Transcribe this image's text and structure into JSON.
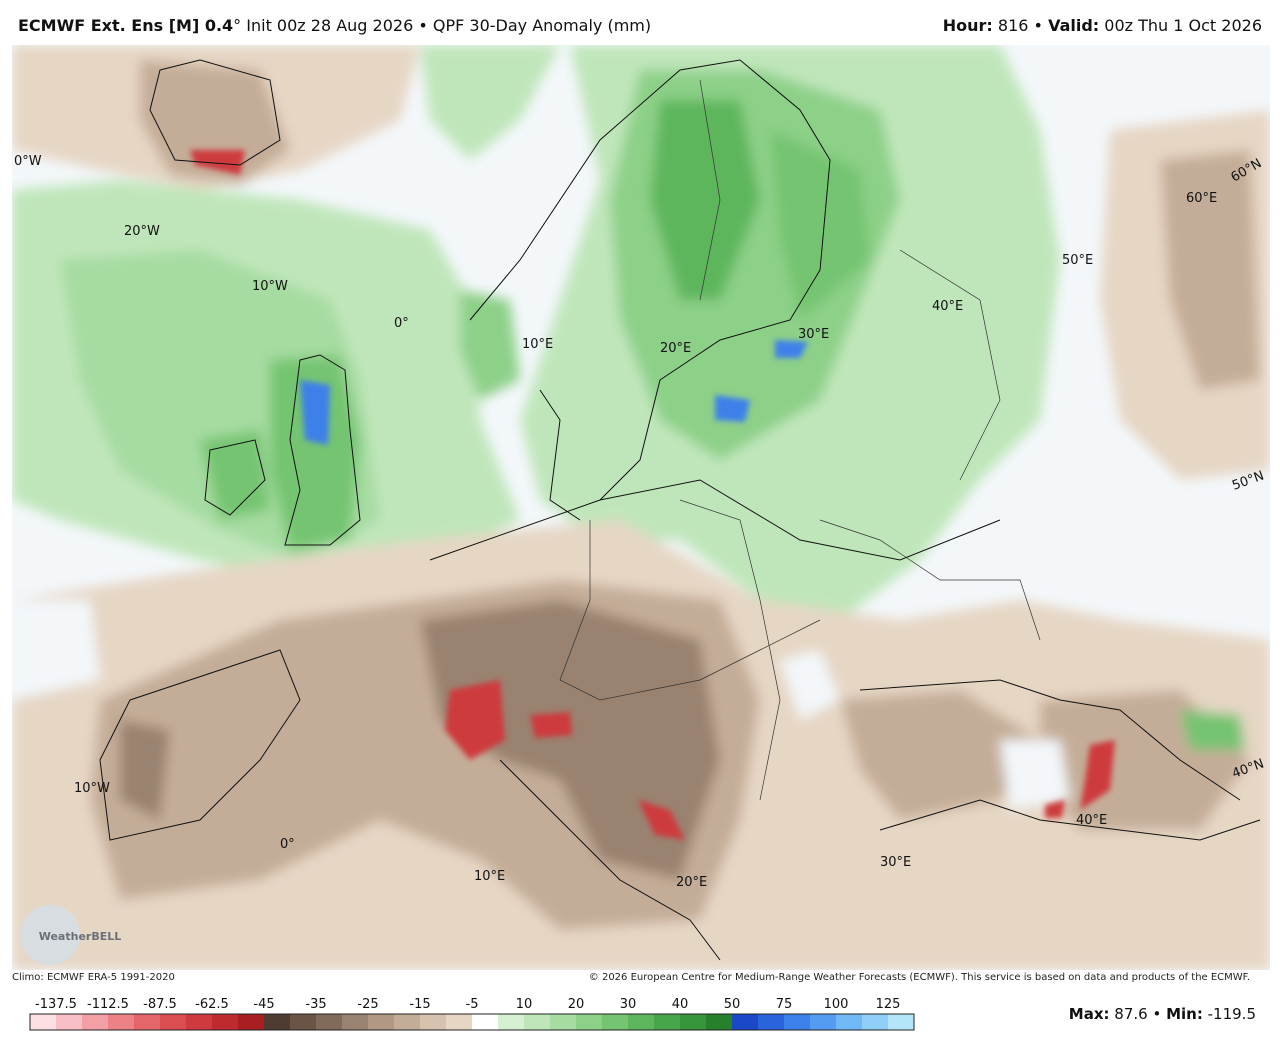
{
  "header": {
    "model": "ECMWF Ext.  Ens [M] 0.4",
    "info": "° Init 00z 28 Aug 2026 • QPF 30-Day Anomaly (mm)",
    "hour_label": "Hour:",
    "hour": "816",
    "separator": "•",
    "valid_label": "Valid:",
    "valid": "00z Thu 1 Oct 2026"
  },
  "map": {
    "labels": [
      "0°W",
      "20°W",
      "10°W",
      "0°",
      "10°E",
      "20°E",
      "30°E",
      "40°E",
      "50°E",
      "60°E",
      "60°N",
      "50°N",
      "40°N",
      "10°W",
      "0°",
      "10°E",
      "20°E",
      "30°E",
      "40°E"
    ],
    "logo": "WeatherBELL"
  },
  "footer": {
    "climo": "Climo: ECMWF ERA-5 1991-2020",
    "copyright": "© 2026 European Centre for Medium-Range Weather Forecasts (ECMWF). This service is based on data and products of the ECMWF."
  },
  "colorbar": {
    "ticks": [
      -137.5,
      -112.5,
      -87.5,
      -62.5,
      -45,
      -35,
      -25,
      -15,
      -5,
      10,
      20,
      30,
      40,
      50,
      75,
      100,
      125
    ],
    "colors": [
      "#fde0e4",
      "#f8c0c6",
      "#f2a0a6",
      "#ec8286",
      "#e4666a",
      "#da4e52",
      "#ce3a3e",
      "#be2a2e",
      "#a81e22",
      "#4e3c32",
      "#6a5446",
      "#826a5a",
      "#9a8270",
      "#b09884",
      "#c4ad98",
      "#d6c2ae",
      "#e6d6c4",
      "#ffffff",
      "#d6f0d2",
      "#bfe6ba",
      "#a6dba1",
      "#8dd088",
      "#74c471",
      "#5db65c",
      "#48a64a",
      "#36943a",
      "#26802c",
      "#1a48c8",
      "#2a64dc",
      "#3c80ea",
      "#549cf2",
      "#70b8f6",
      "#90d0f8",
      "#b4e6fa"
    ]
  },
  "stats": {
    "max_label": "Max:",
    "max": 87.6,
    "separator": "•",
    "min_label": "Min:",
    "min": -119.5
  }
}
